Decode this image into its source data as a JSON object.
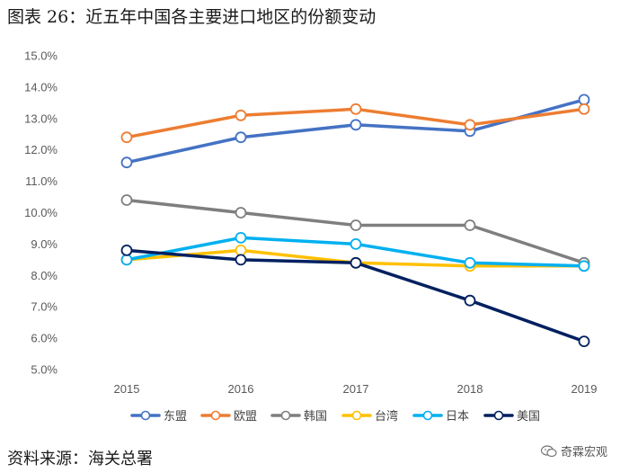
{
  "title": "图表 26：近五年中国各主要进口地区的份额变动",
  "source": "资料来源：海关总署",
  "watermark": "奇霖宏观",
  "chart_data": {
    "type": "line",
    "title": "图表 26：近五年中国各主要进口地区的份额变动",
    "categories": [
      "2015",
      "2016",
      "2017",
      "2018",
      "2019"
    ],
    "ylim": [
      5.0,
      15.0
    ],
    "yticks": [
      "5.0%",
      "6.0%",
      "7.0%",
      "8.0%",
      "9.0%",
      "10.0%",
      "11.0%",
      "12.0%",
      "13.0%",
      "14.0%",
      "15.0%"
    ],
    "grid": false,
    "legend_position": "bottom",
    "series": [
      {
        "name": "东盟",
        "color": "#4472C4",
        "values": [
          11.6,
          12.4,
          12.8,
          12.6,
          13.6
        ]
      },
      {
        "name": "欧盟",
        "color": "#ED7D31",
        "values": [
          12.4,
          13.1,
          13.3,
          12.8,
          13.3
        ]
      },
      {
        "name": "韩国",
        "color": "#7F7F7F",
        "values": [
          10.4,
          10.0,
          9.6,
          9.6,
          8.4
        ]
      },
      {
        "name": "台湾",
        "color": "#FFC000",
        "values": [
          8.5,
          8.8,
          8.4,
          8.3,
          8.3
        ]
      },
      {
        "name": "日本",
        "color": "#00B0F0",
        "values": [
          8.5,
          9.2,
          9.0,
          8.4,
          8.3
        ]
      },
      {
        "name": "美国",
        "color": "#002060",
        "values": [
          8.8,
          8.5,
          8.4,
          7.2,
          5.9
        ]
      }
    ]
  }
}
